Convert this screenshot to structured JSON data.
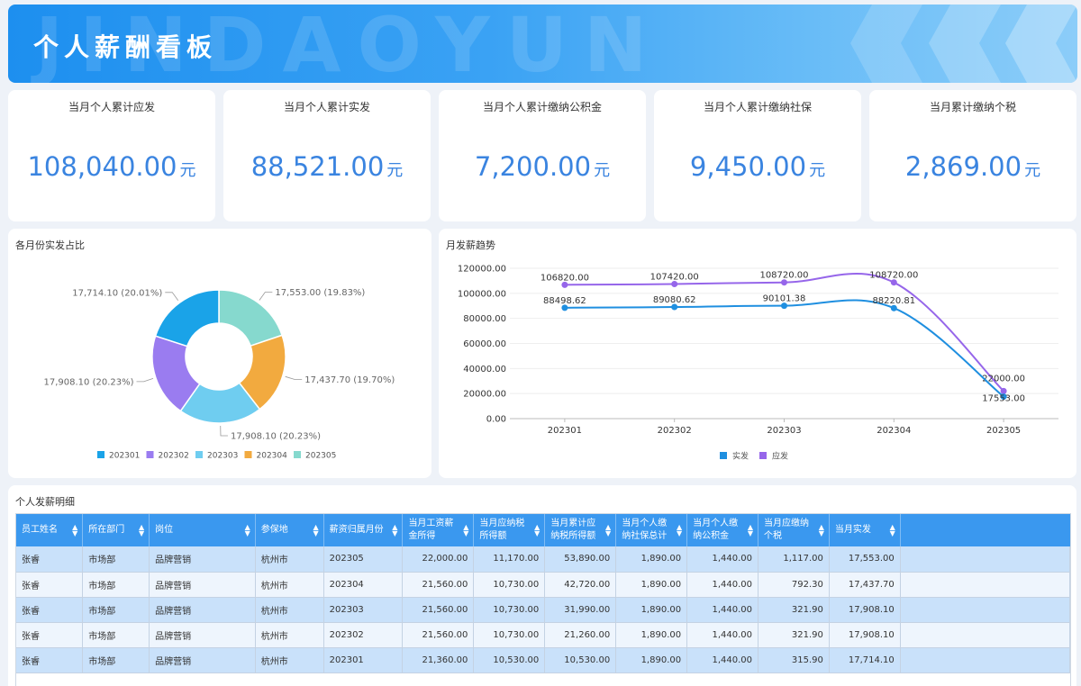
{
  "header": {
    "title": "个人薪酬看板",
    "watermark": "JINDAOYUN"
  },
  "kpis": [
    {
      "title": "当月个人累计应发",
      "value": "108,040.00",
      "unit": "元"
    },
    {
      "title": "当月个人累计实发",
      "value": "88,521.00",
      "unit": "元"
    },
    {
      "title": "当月个人累计缴纳公积金",
      "value": "7,200.00",
      "unit": "元"
    },
    {
      "title": "当月个人累计缴纳社保",
      "value": "9,450.00",
      "unit": "元"
    },
    {
      "title": "当月累计缴纳个税",
      "value": "2,869.00",
      "unit": "元"
    }
  ],
  "colors": {
    "accent": "#3a84e0",
    "header_blue": "#1d8fef",
    "table_header": "#3a98ef",
    "row_odd": "#c9e1fa",
    "row_even": "#eef5fd"
  },
  "pie_panel": {
    "title": "各月份实发占比",
    "chart_data": {
      "type": "pie",
      "donut": true,
      "categories": [
        "202301",
        "202302",
        "202303",
        "202304",
        "202305"
      ],
      "values": [
        17714.1,
        17908.1,
        17908.1,
        17437.7,
        17553.0
      ],
      "labels": [
        "17,714.10 (20.01%)",
        "17,908.10 (20.23%)",
        "17,908.10 (20.23%)",
        "17,437.70 (19.70%)",
        "17,553.00 (19.83%)"
      ],
      "colors": [
        "#1aa3e8",
        "#9a7cf0",
        "#6fcdf0",
        "#f2aa3f",
        "#86d9ce"
      ],
      "legend_placement": "bottom"
    }
  },
  "line_panel": {
    "title": "月发薪趋势",
    "chart_data": {
      "type": "line",
      "categories": [
        "202301",
        "202302",
        "202303",
        "202304",
        "202305"
      ],
      "series": [
        {
          "name": "实发",
          "values": [
            88498.62,
            89080.62,
            90101.38,
            88220.81,
            17553.0
          ],
          "labels": [
            "88498.62",
            "89080.62",
            "90101.38",
            "88220.81",
            "17553.00"
          ],
          "color": "#1f8fe0"
        },
        {
          "name": "应发",
          "values": [
            106820.0,
            107420.0,
            108720.0,
            108720.0,
            22000.0
          ],
          "labels": [
            "106820.00",
            "107420.00",
            "108720.00",
            "108720.00",
            "22000.00"
          ],
          "color": "#9666ea"
        }
      ],
      "yticks": [
        "0.00",
        "20000.00",
        "40000.00",
        "60000.00",
        "80000.00",
        "100000.00",
        "120000.00"
      ],
      "ylim": [
        0,
        120000
      ],
      "grid": true,
      "smooth": true,
      "legend_placement": "bottom"
    }
  },
  "table": {
    "title": "个人发薪明细",
    "columns": [
      "员工姓名",
      "所在部门",
      "岗位",
      "参保地",
      "薪资归属月份",
      "当月工资薪\n金所得",
      "当月应纳税\n所得额",
      "当月累计应\n纳税所得额",
      "当月个人缴\n纳社保总计",
      "当月个人缴\n纳公积金",
      "当月应缴纳\n个税",
      "当月实发"
    ],
    "rows": [
      [
        "张睿",
        "市场部",
        "品牌营销",
        "杭州市",
        "202305",
        "22,000.00",
        "11,170.00",
        "53,890.00",
        "1,890.00",
        "1,440.00",
        "1,117.00",
        "17,553.00"
      ],
      [
        "张睿",
        "市场部",
        "品牌营销",
        "杭州市",
        "202304",
        "21,560.00",
        "10,730.00",
        "42,720.00",
        "1,890.00",
        "1,440.00",
        "792.30",
        "17,437.70"
      ],
      [
        "张睿",
        "市场部",
        "品牌营销",
        "杭州市",
        "202303",
        "21,560.00",
        "10,730.00",
        "31,990.00",
        "1,890.00",
        "1,440.00",
        "321.90",
        "17,908.10"
      ],
      [
        "张睿",
        "市场部",
        "品牌营销",
        "杭州市",
        "202302",
        "21,560.00",
        "10,730.00",
        "21,260.00",
        "1,890.00",
        "1,440.00",
        "321.90",
        "17,908.10"
      ],
      [
        "张睿",
        "市场部",
        "品牌营销",
        "杭州市",
        "202301",
        "21,360.00",
        "10,530.00",
        "10,530.00",
        "1,890.00",
        "1,440.00",
        "315.90",
        "17,714.10"
      ]
    ]
  }
}
